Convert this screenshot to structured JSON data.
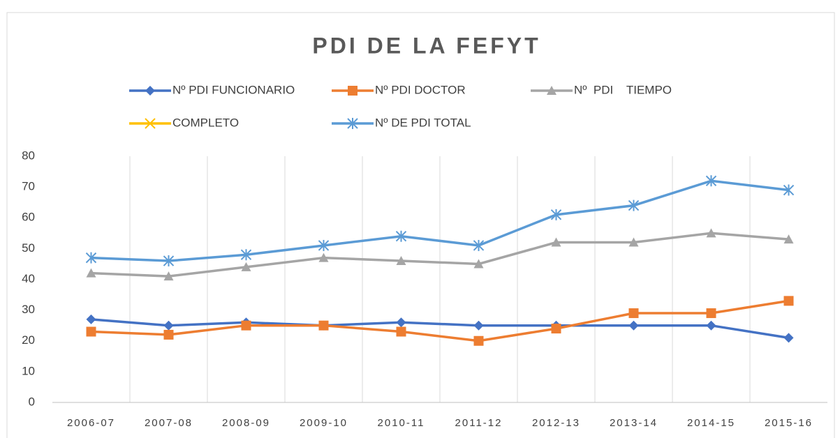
{
  "chart_data": {
    "type": "line",
    "title": "PDI DE LA FEFYT",
    "categories": [
      "2006-07",
      "2007-08",
      "2008-09",
      "2009-10",
      "2010-11",
      "2011-12",
      "2012-13",
      "2013-14",
      "2014-15",
      "2015-16"
    ],
    "series": [
      {
        "name": "Nº PDI FUNCIONARIO",
        "color": "#4472c4",
        "marker": "diamond",
        "values": [
          27,
          25,
          26,
          25,
          26,
          25,
          25,
          25,
          25,
          21
        ]
      },
      {
        "name": "Nº PDI DOCTOR",
        "color": "#ed7d31",
        "marker": "square",
        "values": [
          23,
          22,
          25,
          25,
          23,
          20,
          24,
          29,
          29,
          33
        ]
      },
      {
        "name": "Nº  PDI    TIEMPO",
        "color": "#a5a5a5",
        "marker": "triangle",
        "values": [
          42,
          41,
          44,
          47,
          46,
          45,
          52,
          52,
          55,
          53
        ]
      },
      {
        "name": "COMPLETO",
        "color": "#ffc000",
        "marker": "x",
        "values": [
          null,
          null,
          null,
          null,
          null,
          null,
          null,
          null,
          null,
          null
        ]
      },
      {
        "name": "Nº DE PDI TOTAL",
        "color": "#5b9bd5",
        "marker": "star",
        "values": [
          47,
          46,
          48,
          51,
          54,
          51,
          61,
          64,
          72,
          69
        ]
      }
    ],
    "ylim": [
      0,
      80
    ],
    "yticks": [
      0,
      10,
      20,
      30,
      40,
      50,
      60,
      70,
      80
    ],
    "grid": true,
    "legend": "top"
  }
}
